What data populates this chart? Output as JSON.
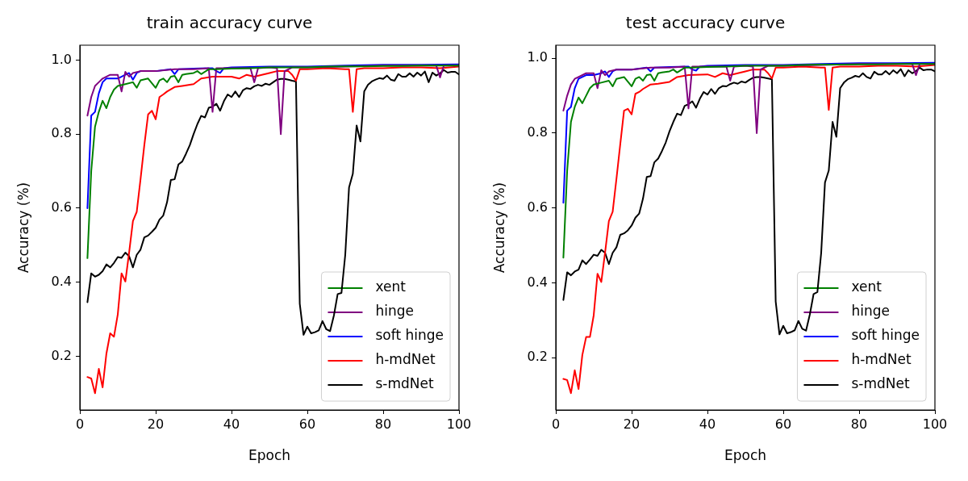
{
  "chart_data": [
    {
      "type": "line",
      "title": "train accuracy curve",
      "xlabel": "Epoch",
      "ylabel": "Accuracy (%)",
      "legend": "bottom right",
      "xlim": [
        0,
        100
      ],
      "xticks": [
        0,
        20,
        40,
        60,
        80,
        100
      ],
      "ylim": [
        0.055,
        1.04
      ],
      "yticks": [
        0.2,
        0.4,
        0.6,
        0.8,
        {
          "value": 1,
          "label": "1.0"
        }
      ],
      "series": [
        {
          "name": "xent",
          "color": "#008000",
          "x": [
            2,
            3,
            4,
            5,
            6,
            7,
            8,
            9,
            10,
            12,
            14,
            15,
            16,
            18,
            20,
            21,
            22,
            23,
            24,
            25,
            26,
            27,
            28,
            30,
            31,
            32,
            34,
            36,
            40,
            45,
            50,
            55,
            60,
            65,
            70,
            75,
            80,
            85,
            90,
            95,
            100
          ],
          "values": [
            0.465,
            0.7,
            0.82,
            0.86,
            0.89,
            0.87,
            0.9,
            0.92,
            0.93,
            0.935,
            0.94,
            0.925,
            0.945,
            0.95,
            0.925,
            0.945,
            0.95,
            0.94,
            0.955,
            0.957,
            0.94,
            0.96,
            0.962,
            0.965,
            0.97,
            0.962,
            0.975,
            0.975,
            0.977,
            0.978,
            0.98,
            0.98,
            0.98,
            0.982,
            0.983,
            0.983,
            0.984,
            0.984,
            0.985,
            0.985,
            0.985
          ]
        },
        {
          "name": "hinge",
          "color": "#800080",
          "x": [
            2,
            3,
            4,
            5,
            6,
            8,
            10,
            11,
            12,
            13,
            14,
            16,
            20,
            25,
            30,
            34,
            35,
            36,
            40,
            45,
            46,
            47,
            50,
            52,
            53,
            54,
            56,
            60,
            70,
            80,
            90,
            94,
            95,
            96,
            100
          ],
          "values": [
            0.85,
            0.9,
            0.93,
            0.94,
            0.95,
            0.96,
            0.96,
            0.915,
            0.968,
            0.955,
            0.965,
            0.97,
            0.97,
            0.975,
            0.975,
            0.978,
            0.86,
            0.978,
            0.978,
            0.978,
            0.94,
            0.978,
            0.98,
            0.978,
            0.8,
            0.97,
            0.98,
            0.98,
            0.982,
            0.985,
            0.985,
            0.985,
            0.953,
            0.985,
            0.985
          ]
        },
        {
          "name": "soft hinge",
          "color": "#0000ff",
          "x": [
            2,
            3,
            4,
            5,
            6,
            7,
            8,
            10,
            12,
            13,
            14,
            15,
            16,
            20,
            24,
            25,
            26,
            30,
            35,
            36,
            37,
            38,
            40,
            50,
            60,
            70,
            80,
            90,
            100
          ],
          "values": [
            0.6,
            0.85,
            0.86,
            0.91,
            0.94,
            0.95,
            0.95,
            0.95,
            0.96,
            0.965,
            0.947,
            0.965,
            0.97,
            0.97,
            0.975,
            0.962,
            0.975,
            0.977,
            0.978,
            0.97,
            0.965,
            0.978,
            0.98,
            0.982,
            0.982,
            0.985,
            0.987,
            0.987,
            0.988
          ]
        },
        {
          "name": "h-mdNet",
          "color": "#ff0000",
          "x": [
            2,
            3,
            4,
            5,
            6,
            7,
            8,
            9,
            10,
            11,
            12,
            13,
            14,
            15,
            16,
            17,
            18,
            19,
            20,
            21,
            22,
            23,
            25,
            27,
            30,
            32,
            35,
            40,
            42,
            44,
            46,
            48,
            50,
            52,
            55,
            56,
            57,
            58,
            60,
            65,
            70,
            71,
            72,
            73,
            75,
            80,
            85,
            90,
            95,
            100
          ],
          "values": [
            0.144,
            0.14,
            0.1,
            0.166,
            0.116,
            0.207,
            0.262,
            0.253,
            0.313,
            0.424,
            0.402,
            0.481,
            0.565,
            0.59,
            0.678,
            0.77,
            0.853,
            0.863,
            0.84,
            0.9,
            0.907,
            0.915,
            0.927,
            0.93,
            0.935,
            0.95,
            0.955,
            0.955,
            0.95,
            0.96,
            0.955,
            0.96,
            0.965,
            0.97,
            0.97,
            0.96,
            0.944,
            0.975,
            0.975,
            0.978,
            0.975,
            0.975,
            0.86,
            0.975,
            0.978,
            0.978,
            0.98,
            0.98,
            0.978,
            0.982
          ]
        },
        {
          "name": "s-mdNet",
          "color": "#000000",
          "x": [
            2,
            3,
            4,
            5,
            6,
            7,
            8,
            9,
            10,
            11,
            12,
            13,
            14,
            15,
            16,
            17,
            18,
            19,
            20,
            21,
            22,
            23,
            24,
            25,
            26,
            27,
            28,
            29,
            30,
            31,
            32,
            33,
            34,
            35,
            36,
            37,
            38,
            39,
            40,
            41,
            42,
            43,
            44,
            45,
            46,
            47,
            48,
            49,
            50,
            51,
            52,
            53,
            54,
            55,
            56,
            57,
            58,
            59,
            60,
            61,
            62,
            63,
            64,
            65,
            66,
            67,
            68,
            69,
            70,
            71,
            72,
            73,
            74,
            75,
            76,
            77,
            78,
            79,
            80,
            81,
            82,
            83,
            84,
            85,
            86,
            87,
            88,
            89,
            90,
            91,
            92,
            93,
            94,
            95,
            96,
            97,
            98,
            99,
            100
          ],
          "values": [
            0.346,
            0.424,
            0.415,
            0.42,
            0.43,
            0.448,
            0.44,
            0.452,
            0.468,
            0.466,
            0.48,
            0.47,
            0.44,
            0.474,
            0.488,
            0.521,
            0.526,
            0.536,
            0.547,
            0.569,
            0.58,
            0.616,
            0.676,
            0.678,
            0.718,
            0.726,
            0.747,
            0.77,
            0.8,
            0.827,
            0.849,
            0.845,
            0.871,
            0.874,
            0.882,
            0.863,
            0.889,
            0.907,
            0.9,
            0.915,
            0.9,
            0.918,
            0.924,
            0.922,
            0.929,
            0.933,
            0.93,
            0.936,
            0.933,
            0.94,
            0.947,
            0.949,
            0.949,
            0.947,
            0.944,
            0.942,
            0.342,
            0.258,
            0.28,
            0.262,
            0.265,
            0.27,
            0.295,
            0.273,
            0.268,
            0.31,
            0.368,
            0.371,
            0.474,
            0.656,
            0.693,
            0.823,
            0.78,
            0.915,
            0.933,
            0.942,
            0.947,
            0.951,
            0.949,
            0.958,
            0.947,
            0.944,
            0.962,
            0.955,
            0.955,
            0.964,
            0.955,
            0.966,
            0.958,
            0.969,
            0.94,
            0.966,
            0.958,
            0.964,
            0.973,
            0.966,
            0.968,
            0.968,
            0.961
          ]
        }
      ]
    },
    {
      "type": "line",
      "title": "test accuracy curve",
      "xlabel": "Epoch",
      "ylabel": "Accuracy (%)",
      "legend": "bottom right",
      "xlim": [
        0,
        100
      ],
      "xticks": [
        0,
        20,
        40,
        60,
        80,
        100
      ],
      "ylim": [
        0.06,
        1.035
      ],
      "yticks": [
        0.2,
        0.4,
        0.6,
        0.8,
        {
          "value": 1,
          "label": "1.0"
        }
      ],
      "series": [
        {
          "name": "xent",
          "color": "#008000",
          "x": [
            2,
            3,
            4,
            5,
            6,
            7,
            8,
            9,
            10,
            12,
            14,
            15,
            16,
            18,
            20,
            21,
            22,
            23,
            24,
            25,
            26,
            27,
            28,
            30,
            31,
            32,
            34,
            36,
            40,
            45,
            50,
            55,
            60,
            65,
            70,
            75,
            80,
            85,
            90,
            95,
            100
          ],
          "values": [
            0.467,
            0.7,
            0.83,
            0.87,
            0.895,
            0.88,
            0.9,
            0.92,
            0.93,
            0.935,
            0.94,
            0.925,
            0.945,
            0.95,
            0.925,
            0.945,
            0.95,
            0.94,
            0.955,
            0.957,
            0.94,
            0.96,
            0.962,
            0.965,
            0.97,
            0.962,
            0.975,
            0.975,
            0.977,
            0.978,
            0.98,
            0.98,
            0.98,
            0.982,
            0.983,
            0.983,
            0.984,
            0.984,
            0.985,
            0.985,
            0.985
          ]
        },
        {
          "name": "hinge",
          "color": "#800080",
          "x": [
            2,
            3,
            4,
            5,
            6,
            8,
            10,
            11,
            12,
            13,
            14,
            16,
            20,
            25,
            30,
            34,
            35,
            36,
            40,
            45,
            46,
            47,
            50,
            52,
            53,
            54,
            56,
            60,
            70,
            80,
            90,
            94,
            95,
            96,
            100
          ],
          "values": [
            0.86,
            0.9,
            0.93,
            0.945,
            0.95,
            0.96,
            0.96,
            0.92,
            0.968,
            0.955,
            0.965,
            0.97,
            0.97,
            0.975,
            0.975,
            0.978,
            0.866,
            0.978,
            0.978,
            0.978,
            0.94,
            0.978,
            0.98,
            0.978,
            0.8,
            0.97,
            0.98,
            0.98,
            0.982,
            0.985,
            0.985,
            0.985,
            0.955,
            0.985,
            0.985
          ]
        },
        {
          "name": "soft hinge",
          "color": "#0000ff",
          "x": [
            2,
            3,
            4,
            5,
            6,
            7,
            8,
            10,
            12,
            13,
            14,
            15,
            16,
            20,
            24,
            25,
            26,
            30,
            35,
            36,
            37,
            38,
            40,
            50,
            60,
            70,
            80,
            90,
            100
          ],
          "values": [
            0.614,
            0.86,
            0.87,
            0.92,
            0.945,
            0.95,
            0.955,
            0.955,
            0.96,
            0.965,
            0.95,
            0.965,
            0.97,
            0.97,
            0.975,
            0.965,
            0.975,
            0.977,
            0.978,
            0.97,
            0.967,
            0.978,
            0.98,
            0.982,
            0.982,
            0.985,
            0.987,
            0.987,
            0.988
          ]
        },
        {
          "name": "h-mdNet",
          "color": "#ff0000",
          "x": [
            2,
            3,
            4,
            5,
            6,
            7,
            8,
            9,
            10,
            11,
            12,
            13,
            14,
            15,
            16,
            17,
            18,
            19,
            20,
            21,
            22,
            23,
            25,
            27,
            30,
            32,
            35,
            40,
            42,
            44,
            46,
            48,
            50,
            52,
            55,
            56,
            57,
            58,
            60,
            65,
            70,
            71,
            72,
            73,
            75,
            80,
            85,
            90,
            95,
            100
          ],
          "values": [
            0.143,
            0.14,
            0.105,
            0.166,
            0.116,
            0.207,
            0.255,
            0.255,
            0.313,
            0.424,
            0.402,
            0.481,
            0.565,
            0.59,
            0.678,
            0.77,
            0.86,
            0.865,
            0.85,
            0.905,
            0.91,
            0.918,
            0.93,
            0.932,
            0.937,
            0.95,
            0.955,
            0.957,
            0.95,
            0.96,
            0.955,
            0.96,
            0.965,
            0.97,
            0.97,
            0.96,
            0.946,
            0.975,
            0.975,
            0.978,
            0.975,
            0.975,
            0.862,
            0.975,
            0.978,
            0.978,
            0.98,
            0.98,
            0.978,
            0.982
          ]
        },
        {
          "name": "s-mdNet",
          "color": "#000000",
          "x": [
            2,
            3,
            4,
            5,
            6,
            7,
            8,
            9,
            10,
            11,
            12,
            13,
            14,
            15,
            16,
            17,
            18,
            19,
            20,
            21,
            22,
            23,
            24,
            25,
            26,
            27,
            28,
            29,
            30,
            31,
            32,
            33,
            34,
            35,
            36,
            37,
            38,
            39,
            40,
            41,
            42,
            43,
            44,
            45,
            46,
            47,
            48,
            49,
            50,
            51,
            52,
            53,
            54,
            55,
            56,
            57,
            58,
            59,
            60,
            61,
            62,
            63,
            64,
            65,
            66,
            67,
            68,
            69,
            70,
            71,
            72,
            73,
            74,
            75,
            76,
            77,
            78,
            79,
            80,
            81,
            82,
            83,
            84,
            85,
            86,
            87,
            88,
            89,
            90,
            91,
            92,
            93,
            94,
            95,
            96,
            97,
            98,
            99,
            100
          ],
          "values": [
            0.354,
            0.428,
            0.42,
            0.43,
            0.435,
            0.46,
            0.45,
            0.462,
            0.475,
            0.472,
            0.488,
            0.48,
            0.45,
            0.48,
            0.495,
            0.528,
            0.532,
            0.54,
            0.553,
            0.574,
            0.585,
            0.625,
            0.683,
            0.685,
            0.722,
            0.732,
            0.752,
            0.775,
            0.805,
            0.83,
            0.852,
            0.848,
            0.873,
            0.877,
            0.885,
            0.868,
            0.892,
            0.91,
            0.903,
            0.918,
            0.905,
            0.92,
            0.926,
            0.925,
            0.931,
            0.935,
            0.932,
            0.938,
            0.935,
            0.942,
            0.948,
            0.95,
            0.95,
            0.948,
            0.946,
            0.944,
            0.35,
            0.262,
            0.285,
            0.265,
            0.268,
            0.273,
            0.298,
            0.277,
            0.272,
            0.315,
            0.37,
            0.375,
            0.48,
            0.668,
            0.7,
            0.83,
            0.79,
            0.92,
            0.935,
            0.944,
            0.948,
            0.953,
            0.95,
            0.96,
            0.95,
            0.946,
            0.964,
            0.957,
            0.957,
            0.966,
            0.957,
            0.968,
            0.96,
            0.971,
            0.952,
            0.968,
            0.96,
            0.966,
            0.975,
            0.968,
            0.97,
            0.97,
            0.965
          ]
        }
      ]
    }
  ]
}
